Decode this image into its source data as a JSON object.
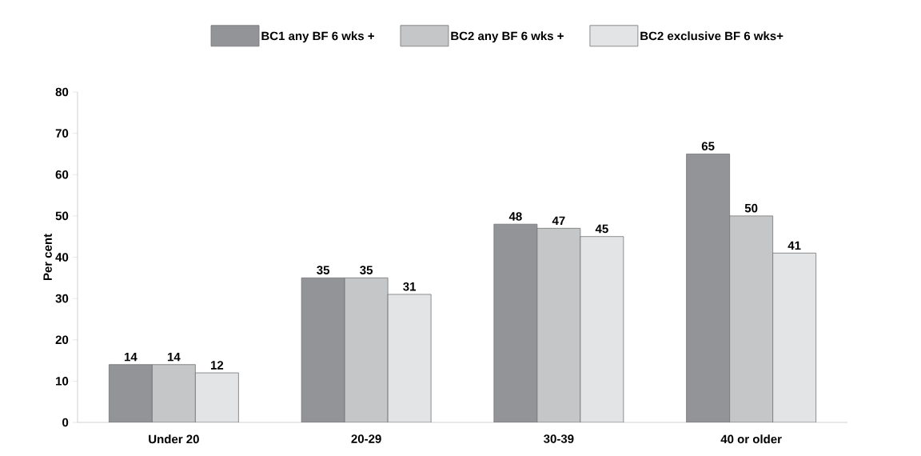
{
  "chart_data": {
    "type": "bar",
    "ylabel": "Per cent",
    "categories": [
      "Under 20",
      "20-29",
      "30-39",
      "40 or older"
    ],
    "series": [
      {
        "name": "BC1 any BF 6 wks +",
        "color": "#939498",
        "values": [
          14,
          35,
          48,
          65
        ]
      },
      {
        "name": "BC2 any BF 6 wks +",
        "color": "#c5c6c8",
        "values": [
          14,
          35,
          47,
          50
        ]
      },
      {
        "name": "BC2 exclusive BF  6 wks+",
        "color": "#e3e4e6",
        "values": [
          12,
          31,
          45,
          41
        ]
      }
    ],
    "ylim": [
      0,
      80
    ],
    "yticks": [
      0,
      10,
      20,
      30,
      40,
      50,
      60,
      70,
      80
    ],
    "data_labels": true,
    "legend": "top",
    "grid": false
  }
}
